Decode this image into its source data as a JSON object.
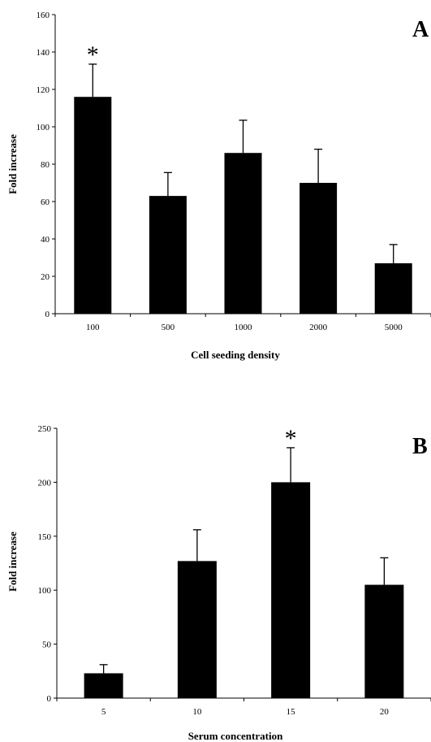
{
  "chart_data": [
    {
      "type": "bar",
      "panel": "A",
      "title": "",
      "xlabel": "Cell seeding density",
      "ylabel": "Fold increase",
      "categories": [
        "100",
        "500",
        "1000",
        "2000",
        "5000"
      ],
      "values": [
        116,
        63,
        86,
        70,
        27
      ],
      "errors": [
        17.5,
        12.5,
        17.5,
        18,
        10
      ],
      "significance": [
        "*",
        "",
        "",
        "",
        ""
      ],
      "ylim": [
        0,
        160
      ],
      "yticks": [
        0,
        20,
        40,
        60,
        80,
        100,
        120,
        140,
        160
      ],
      "grid": false,
      "bar_color": "#000000"
    },
    {
      "type": "bar",
      "panel": "B",
      "title": "",
      "xlabel": "Serum concentration",
      "ylabel": "Fold increase",
      "categories": [
        "5",
        "10",
        "15",
        "20"
      ],
      "values": [
        23,
        127,
        200,
        105
      ],
      "errors": [
        8,
        29,
        32,
        25
      ],
      "significance": [
        "",
        "",
        "*",
        ""
      ],
      "ylim": [
        0,
        250
      ],
      "yticks": [
        0,
        50,
        100,
        150,
        200,
        250
      ],
      "grid": false,
      "bar_color": "#000000"
    }
  ]
}
